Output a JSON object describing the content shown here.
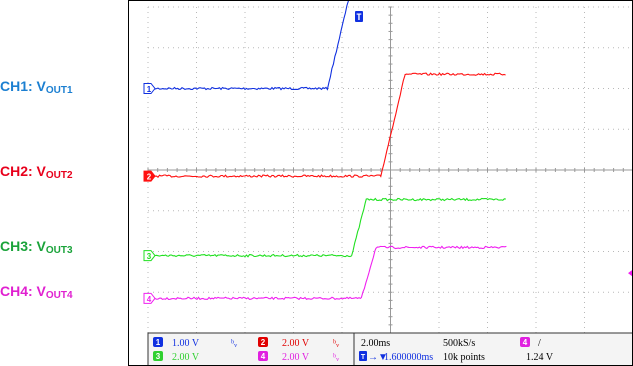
{
  "side_labels": [
    {
      "prefix": "CH1: V",
      "sub": "OUT1",
      "color": "#1b7fd1"
    },
    {
      "prefix": "CH2: V",
      "sub": "OUT2",
      "color": "#e8001c"
    },
    {
      "prefix": "CH3: V",
      "sub": "OUT3",
      "color": "#1aa33a"
    },
    {
      "prefix": "CH4: V",
      "sub": "OUT4",
      "color": "#e020d0"
    }
  ],
  "trigger_marker": "T",
  "readout": {
    "ch1_scale": "1.00 V",
    "ch2_scale": "2.00 V",
    "ch3_scale": "2.00 V",
    "ch4_scale": "2.00 V",
    "timebase": "2.00ms",
    "sample_rate": "500kS/s",
    "trigger_position": "1.600000ms",
    "record_length": "10k points",
    "trigger_level": "1.24 V",
    "trigger_source": "4",
    "trigger_slope": "/"
  },
  "colors": {
    "ch1": "#1030e0",
    "ch2": "#ff1010",
    "ch3": "#20e020",
    "ch4": "#f020f0",
    "grid": "#b8b8b8",
    "border": "#000000"
  },
  "chart_data": {
    "type": "line",
    "x_unit": "ms",
    "x_per_div": 2.0,
    "series": [
      {
        "name": "CH1: VOUT1",
        "channel": 1,
        "volts_per_div": 1.0,
        "x": [
          -10,
          -2.6,
          -1.6,
          4.8
        ],
        "y": [
          0,
          0,
          2.5,
          2.5
        ]
      },
      {
        "name": "CH2: VOUT2",
        "channel": 2,
        "volts_per_div": 2.0,
        "x": [
          -10,
          -0.4,
          0.6,
          4.8
        ],
        "y": [
          0,
          0,
          5.0,
          5.0
        ]
      },
      {
        "name": "CH3: VOUT3",
        "channel": 3,
        "volts_per_div": 2.0,
        "x": [
          -10,
          -1.6,
          -1.0,
          4.8
        ],
        "y": [
          0,
          0,
          2.75,
          2.75
        ]
      },
      {
        "name": "CH4: VOUT4",
        "channel": 4,
        "volts_per_div": 2.0,
        "x": [
          -10,
          -1.2,
          -0.6,
          4.8
        ],
        "y": [
          0,
          0,
          2.5,
          2.5
        ]
      }
    ]
  }
}
